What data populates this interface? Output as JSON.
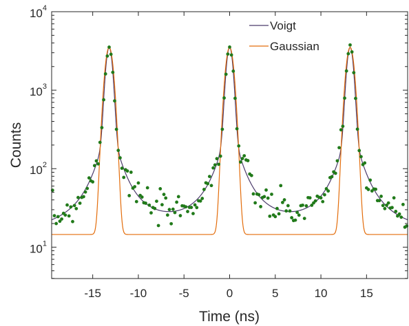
{
  "chart_data": {
    "type": "scatter",
    "xlabel": "Time (ns)",
    "ylabel": "Counts",
    "xlim": [
      -19.5,
      19.5
    ],
    "ylim_log10": [
      0.6,
      4
    ],
    "y_scale": "log",
    "x_ticks": [
      -15,
      -10,
      -5,
      0,
      5,
      10,
      15
    ],
    "x_tick_labels": [
      "-15",
      "-10",
      "-5",
      "0",
      "5",
      "10",
      "15"
    ],
    "y_ticks": [
      {
        "base": "10",
        "exp": "1"
      },
      {
        "base": "10",
        "exp": "2"
      },
      {
        "base": "10",
        "exp": "3"
      },
      {
        "base": "10",
        "exp": "4"
      }
    ],
    "grid": false,
    "legend_position": "top-right",
    "peak_centers": [
      -13.2,
      0,
      13.2
    ],
    "peak_height": 3500,
    "series": [
      {
        "name": "Voigt",
        "kind": "line",
        "color": "#4b3a6b",
        "baseline": 13.5,
        "fwhm_ns": 0.75,
        "tail_width_ns": 1.1,
        "tail_amplitude": 260
      },
      {
        "name": "Gaussian",
        "kind": "line",
        "color": "#e36c0a",
        "baseline": 14.5,
        "sigma_ns": 0.4
      },
      {
        "name": "",
        "kind": "points",
        "color": "#217a1a",
        "noise_seed": 7
      }
    ]
  }
}
